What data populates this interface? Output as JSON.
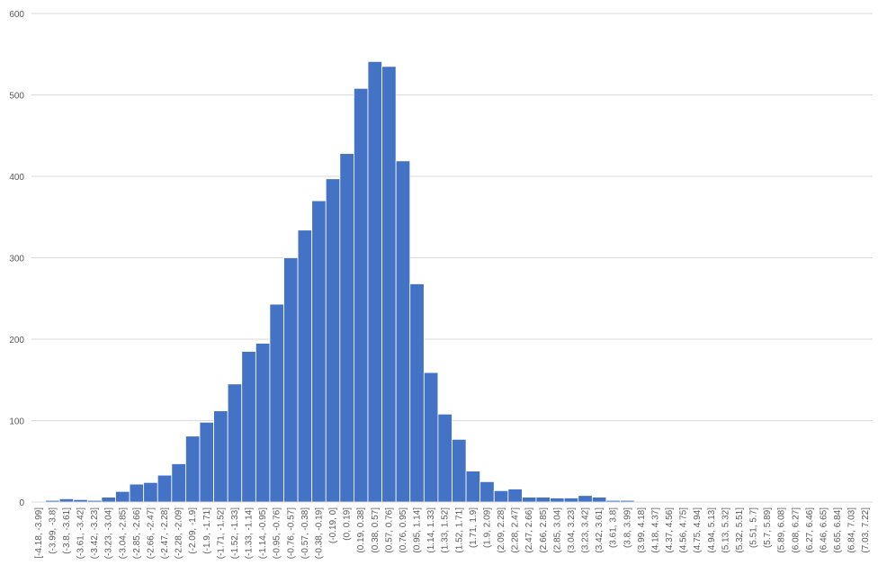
{
  "chart_data": {
    "type": "bar",
    "color": "#4472c4",
    "grid": true,
    "ylim": [
      0,
      600
    ],
    "yticks": [
      0,
      100,
      200,
      300,
      400,
      500,
      600
    ],
    "categories": [
      "[-4.18, -3.99]",
      "(-3.99, -3.8]",
      "(-3.8, -3.61]",
      "(-3.61, -3.42]",
      "(-3.42, -3.23]",
      "(-3.23, -3.04]",
      "(-3.04, -2.85]",
      "(-2.85, -2.66]",
      "(-2.66, -2.47]",
      "(-2.47, -2.28]",
      "(-2.28, -2.09]",
      "(-2.09, -1.9]",
      "(-1.9, -1.71]",
      "(-1.71, -1.52]",
      "(-1.52, -1.33]",
      "(-1.33, -1.14]",
      "(-1.14, -0.95]",
      "(-0.95, -0.76]",
      "(-0.76, -0.57]",
      "(-0.57, -0.38]",
      "(-0.38, -0.19]",
      "(-0.19, 0]",
      "(0, 0.19]",
      "(0.19, 0.38]",
      "(0.38, 0.57]",
      "(0.57, 0.76]",
      "(0.76, 0.95]",
      "(0.95, 1.14]",
      "(1.14, 1.33]",
      "(1.33, 1.52]",
      "(1.52, 1.71]",
      "(1.71, 1.9]",
      "(1.9, 2.09]",
      "(2.09, 2.28]",
      "(2.28, 2.47]",
      "(2.47, 2.66]",
      "(2.66, 2.85]",
      "(2.85, 3.04]",
      "(3.04, 3.23]",
      "(3.23, 3.42]",
      "(3.42, 3.61]",
      "(3.61, 3.8]",
      "(3.8, 3.99]",
      "(3.99, 4.18]",
      "(4.18, 4.37]",
      "(4.37, 4.56]",
      "(4.56, 4.75]",
      "(4.75, 4.94]",
      "(4.94, 5.13]",
      "(5.13, 5.32]",
      "(5.32, 5.51]",
      "(5.51, 5.7]",
      "(5.7, 5.89]",
      "(5.89, 6.08]",
      "(6.08, 6.27]",
      "(6.27, 6.46]",
      "(6.46, 6.65]",
      "(6.65, 6.84]",
      "(6.84, 7.03]",
      "(7.03, 7.22]"
    ],
    "values": [
      0,
      2,
      4,
      3,
      2,
      6,
      13,
      22,
      24,
      33,
      47,
      81,
      98,
      112,
      145,
      185,
      195,
      243,
      300,
      334,
      370,
      397,
      428,
      508,
      541,
      535,
      419,
      268,
      159,
      108,
      77,
      38,
      25,
      14,
      16,
      6,
      6,
      5,
      5,
      8,
      6,
      2,
      2,
      0,
      0,
      0,
      0,
      0,
      0,
      0,
      0,
      0,
      0,
      0,
      0,
      0,
      0,
      0,
      0,
      0
    ]
  }
}
